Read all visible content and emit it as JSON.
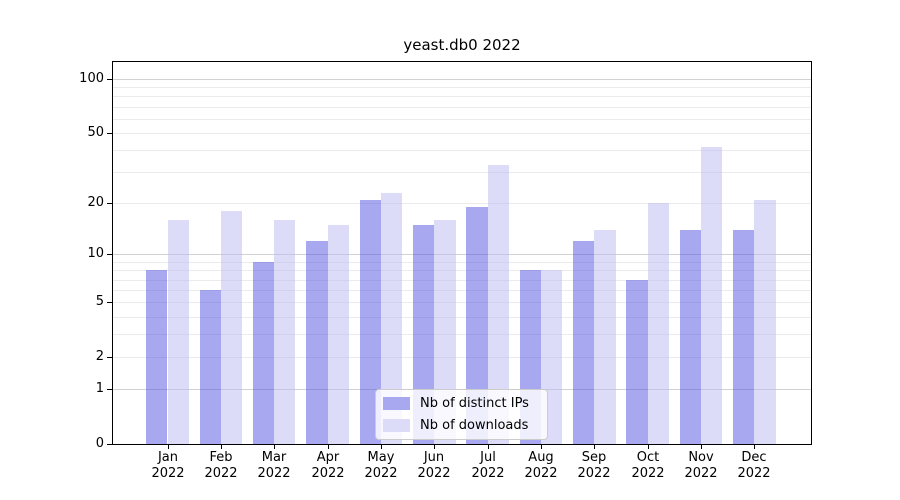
{
  "title": "yeast.db0 2022",
  "chart_data": {
    "type": "bar",
    "title": "yeast.db0 2022",
    "categories": [
      {
        "month": "Jan",
        "year": "2022"
      },
      {
        "month": "Feb",
        "year": "2022"
      },
      {
        "month": "Mar",
        "year": "2022"
      },
      {
        "month": "Apr",
        "year": "2022"
      },
      {
        "month": "May",
        "year": "2022"
      },
      {
        "month": "Jun",
        "year": "2022"
      },
      {
        "month": "Jul",
        "year": "2022"
      },
      {
        "month": "Aug",
        "year": "2022"
      },
      {
        "month": "Sep",
        "year": "2022"
      },
      {
        "month": "Oct",
        "year": "2022"
      },
      {
        "month": "Nov",
        "year": "2022"
      },
      {
        "month": "Dec",
        "year": "2022"
      }
    ],
    "series": [
      {
        "name": "Nb of distinct IPs",
        "color": "#a8a8f0",
        "fill": "rgba(81,81,225,0.5)",
        "values": [
          8,
          6,
          9,
          12,
          21,
          15,
          19,
          8,
          12,
          7,
          14,
          14
        ]
      },
      {
        "name": "Nb of downloads",
        "color": "#dcdcf8",
        "fill": "rgba(185,185,241,0.5)",
        "values": [
          16,
          18,
          16,
          15,
          23,
          16,
          33,
          8,
          14,
          20,
          42,
          21
        ]
      }
    ],
    "y_scale": "log1p",
    "ylim": [
      0,
      126
    ],
    "y_ticks": [
      100,
      50,
      20,
      10,
      5,
      2,
      1,
      0
    ],
    "y_major_gridlines": [
      1,
      10,
      100
    ],
    "y_minor_gridlines": [
      2,
      3,
      4,
      5,
      6,
      7,
      8,
      9,
      20,
      30,
      40,
      50,
      60,
      70,
      80,
      90
    ],
    "grid": true,
    "legend": {
      "position": "inside-bottom-center",
      "labels": [
        "Nb of distinct IPs",
        "Nb of downloads"
      ]
    },
    "xlabel": "",
    "ylabel": ""
  },
  "colors": {
    "bar_distinct_ips": "#a8a8f0",
    "bar_downloads": "#dcdcf8",
    "grid_major": "#d2d2d2",
    "grid_minor": "#ebebeb",
    "axis": "#000000",
    "background": "#ffffff"
  }
}
